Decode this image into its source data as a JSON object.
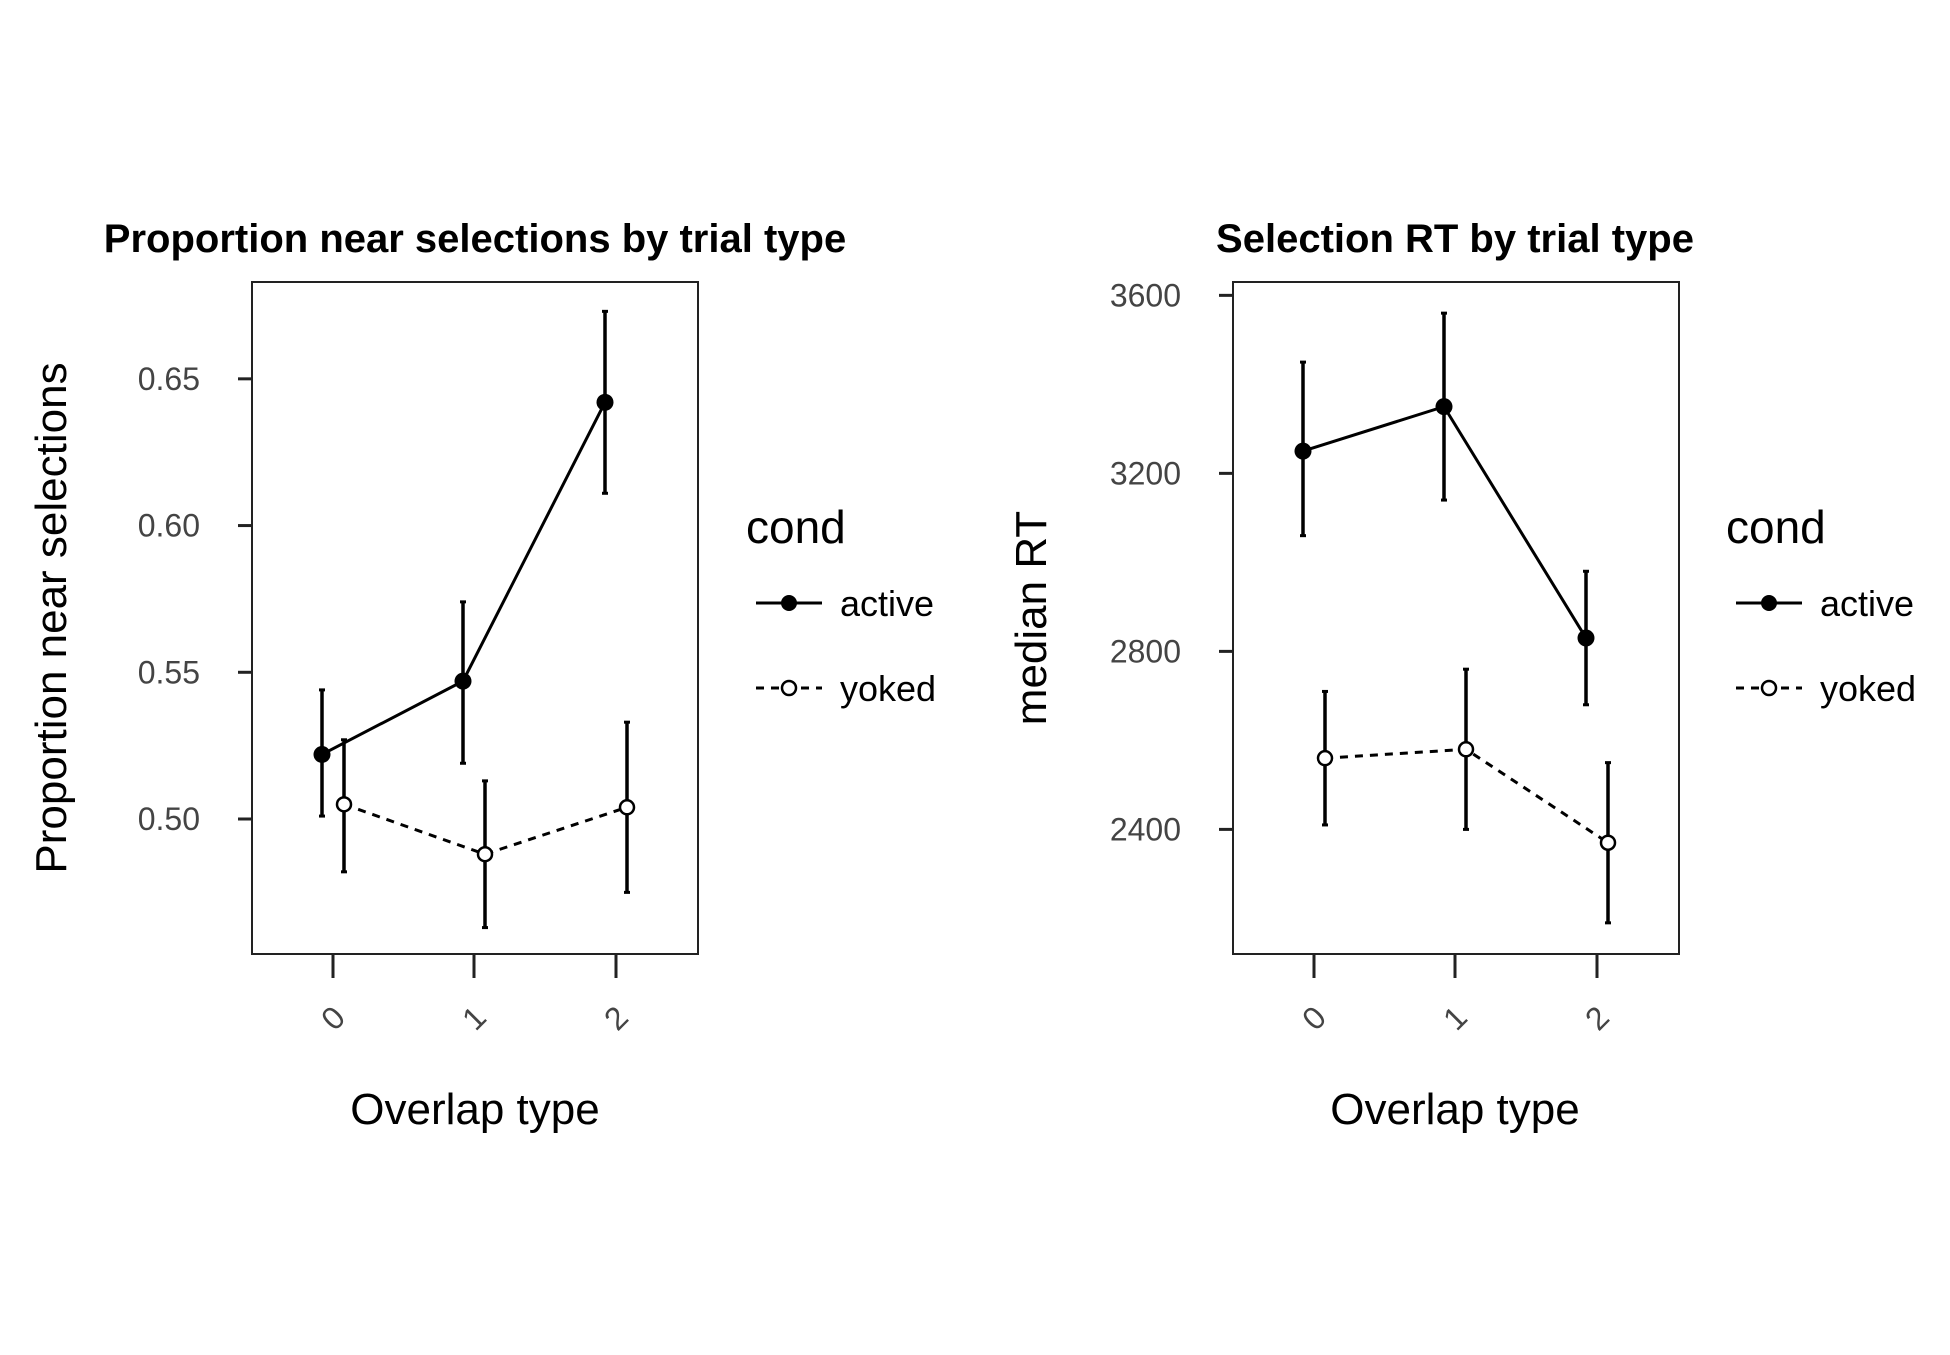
{
  "chart_data": [
    {
      "type": "line",
      "title": "Proportion near selections by trial type",
      "xlabel": "Overlap type",
      "ylabel": "Proportion near selections",
      "categories": [
        "0",
        "1",
        "2"
      ],
      "ylim": [
        0.454,
        0.683
      ],
      "yticks": [
        "0.50",
        "0.55",
        "0.60",
        "0.65"
      ],
      "legend": {
        "title": "cond",
        "position": "right"
      },
      "grid": false,
      "series": [
        {
          "name": "active",
          "marker": "filled-circle",
          "line": "solid",
          "values": [
            0.522,
            0.547,
            0.642
          ],
          "err_low": [
            0.501,
            0.519,
            0.611
          ],
          "err_high": [
            0.544,
            0.574,
            0.673
          ]
        },
        {
          "name": "yoked",
          "marker": "open-circle",
          "line": "dashed",
          "values": [
            0.505,
            0.488,
            0.504
          ],
          "err_low": [
            0.482,
            0.463,
            0.475
          ],
          "err_high": [
            0.527,
            0.513,
            0.533
          ]
        }
      ]
    },
    {
      "type": "line",
      "title": "Selection RT by trial type",
      "xlabel": "Overlap type",
      "ylabel": "median RT",
      "categories": [
        "0",
        "1",
        "2"
      ],
      "ylim": [
        2120,
        3630
      ],
      "yticks": [
        "2400",
        "2800",
        "3200",
        "3600"
      ],
      "legend": {
        "title": "cond",
        "position": "right"
      },
      "grid": false,
      "series": [
        {
          "name": "active",
          "marker": "filled-circle",
          "line": "solid",
          "values": [
            3250,
            3350,
            2830
          ],
          "err_low": [
            3060,
            3140,
            2680
          ],
          "err_high": [
            3450,
            3560,
            2980
          ]
        },
        {
          "name": "yoked",
          "marker": "open-circle",
          "line": "dashed",
          "values": [
            2560,
            2580,
            2370
          ],
          "err_low": [
            2410,
            2400,
            2190
          ],
          "err_high": [
            2710,
            2760,
            2550
          ]
        }
      ]
    }
  ]
}
